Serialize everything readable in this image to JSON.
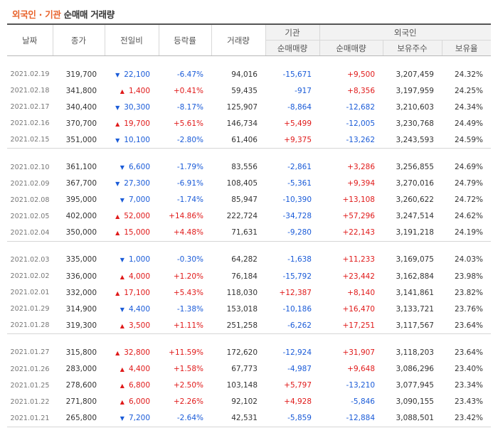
{
  "title": {
    "part1": "외국인",
    "sep": "·",
    "part2": "기관",
    "part3": "순매매 거래량"
  },
  "headers": {
    "date": "날짜",
    "close": "종가",
    "change": "전일비",
    "rate": "등락률",
    "volume": "거래량",
    "inst_group": "기관",
    "inst_net": "순매매량",
    "foreign_group": "외국인",
    "foreign_net": "순매매량",
    "foreign_hold": "보유주수",
    "foreign_ratio": "보유율"
  },
  "colors": {
    "up": "#e01a1a",
    "down": "#1a5bd8",
    "accent": "#e8622a"
  },
  "groups": [
    {
      "rows": [
        {
          "date": "2021.02.19",
          "close": "319,700",
          "dir": "down",
          "change": "22,100",
          "rate": "-6.47%",
          "volume": "94,016",
          "inst": "-15,671",
          "foreign": "+9,500",
          "hold": "3,207,459",
          "ratio": "24.32%"
        },
        {
          "date": "2021.02.18",
          "close": "341,800",
          "dir": "up",
          "change": "1,400",
          "rate": "+0.41%",
          "volume": "59,435",
          "inst": "-917",
          "foreign": "+8,356",
          "hold": "3,197,959",
          "ratio": "24.25%"
        },
        {
          "date": "2021.02.17",
          "close": "340,400",
          "dir": "down",
          "change": "30,300",
          "rate": "-8.17%",
          "volume": "125,907",
          "inst": "-8,864",
          "foreign": "-12,682",
          "hold": "3,210,603",
          "ratio": "24.34%"
        },
        {
          "date": "2021.02.16",
          "close": "370,700",
          "dir": "up",
          "change": "19,700",
          "rate": "+5.61%",
          "volume": "146,734",
          "inst": "+5,499",
          "foreign": "-12,005",
          "hold": "3,230,768",
          "ratio": "24.49%"
        },
        {
          "date": "2021.02.15",
          "close": "351,000",
          "dir": "down",
          "change": "10,100",
          "rate": "-2.80%",
          "volume": "61,406",
          "inst": "+9,375",
          "foreign": "-13,262",
          "hold": "3,243,593",
          "ratio": "24.59%"
        }
      ]
    },
    {
      "rows": [
        {
          "date": "2021.02.10",
          "close": "361,100",
          "dir": "down",
          "change": "6,600",
          "rate": "-1.79%",
          "volume": "83,556",
          "inst": "-2,861",
          "foreign": "+3,286",
          "hold": "3,256,855",
          "ratio": "24.69%"
        },
        {
          "date": "2021.02.09",
          "close": "367,700",
          "dir": "down",
          "change": "27,300",
          "rate": "-6.91%",
          "volume": "108,405",
          "inst": "-5,361",
          "foreign": "+9,394",
          "hold": "3,270,016",
          "ratio": "24.79%"
        },
        {
          "date": "2021.02.08",
          "close": "395,000",
          "dir": "down",
          "change": "7,000",
          "rate": "-1.74%",
          "volume": "85,947",
          "inst": "-10,390",
          "foreign": "+13,108",
          "hold": "3,260,622",
          "ratio": "24.72%"
        },
        {
          "date": "2021.02.05",
          "close": "402,000",
          "dir": "up",
          "change": "52,000",
          "rate": "+14.86%",
          "volume": "222,724",
          "inst": "-34,728",
          "foreign": "+57,296",
          "hold": "3,247,514",
          "ratio": "24.62%"
        },
        {
          "date": "2021.02.04",
          "close": "350,000",
          "dir": "up",
          "change": "15,000",
          "rate": "+4.48%",
          "volume": "71,631",
          "inst": "-9,280",
          "foreign": "+22,143",
          "hold": "3,191,218",
          "ratio": "24.19%"
        }
      ]
    },
    {
      "rows": [
        {
          "date": "2021.02.03",
          "close": "335,000",
          "dir": "down",
          "change": "1,000",
          "rate": "-0.30%",
          "volume": "64,282",
          "inst": "-1,638",
          "foreign": "+11,233",
          "hold": "3,169,075",
          "ratio": "24.03%"
        },
        {
          "date": "2021.02.02",
          "close": "336,000",
          "dir": "up",
          "change": "4,000",
          "rate": "+1.20%",
          "volume": "76,184",
          "inst": "-15,792",
          "foreign": "+23,442",
          "hold": "3,162,884",
          "ratio": "23.98%"
        },
        {
          "date": "2021.02.01",
          "close": "332,000",
          "dir": "up",
          "change": "17,100",
          "rate": "+5.43%",
          "volume": "118,030",
          "inst": "+12,387",
          "foreign": "+8,140",
          "hold": "3,141,861",
          "ratio": "23.82%"
        },
        {
          "date": "2021.01.29",
          "close": "314,900",
          "dir": "down",
          "change": "4,400",
          "rate": "-1.38%",
          "volume": "153,018",
          "inst": "-10,186",
          "foreign": "+16,470",
          "hold": "3,133,721",
          "ratio": "23.76%"
        },
        {
          "date": "2021.01.28",
          "close": "319,300",
          "dir": "up",
          "change": "3,500",
          "rate": "+1.11%",
          "volume": "251,258",
          "inst": "-6,262",
          "foreign": "+17,251",
          "hold": "3,117,567",
          "ratio": "23.64%"
        }
      ]
    },
    {
      "rows": [
        {
          "date": "2021.01.27",
          "close": "315,800",
          "dir": "up",
          "change": "32,800",
          "rate": "+11.59%",
          "volume": "172,620",
          "inst": "-12,924",
          "foreign": "+31,907",
          "hold": "3,118,203",
          "ratio": "23.64%"
        },
        {
          "date": "2021.01.26",
          "close": "283,000",
          "dir": "up",
          "change": "4,400",
          "rate": "+1.58%",
          "volume": "67,773",
          "inst": "-4,987",
          "foreign": "+9,648",
          "hold": "3,086,296",
          "ratio": "23.40%"
        },
        {
          "date": "2021.01.25",
          "close": "278,600",
          "dir": "up",
          "change": "6,800",
          "rate": "+2.50%",
          "volume": "103,148",
          "inst": "+5,797",
          "foreign": "-13,210",
          "hold": "3,077,945",
          "ratio": "23.34%"
        },
        {
          "date": "2021.01.22",
          "close": "271,800",
          "dir": "up",
          "change": "6,000",
          "rate": "+2.26%",
          "volume": "92,102",
          "inst": "+4,928",
          "foreign": "-5,846",
          "hold": "3,090,155",
          "ratio": "23.43%"
        },
        {
          "date": "2021.01.21",
          "close": "265,800",
          "dir": "down",
          "change": "7,200",
          "rate": "-2.64%",
          "volume": "42,531",
          "inst": "-5,859",
          "foreign": "-12,884",
          "hold": "3,088,501",
          "ratio": "23.42%"
        }
      ]
    }
  ]
}
